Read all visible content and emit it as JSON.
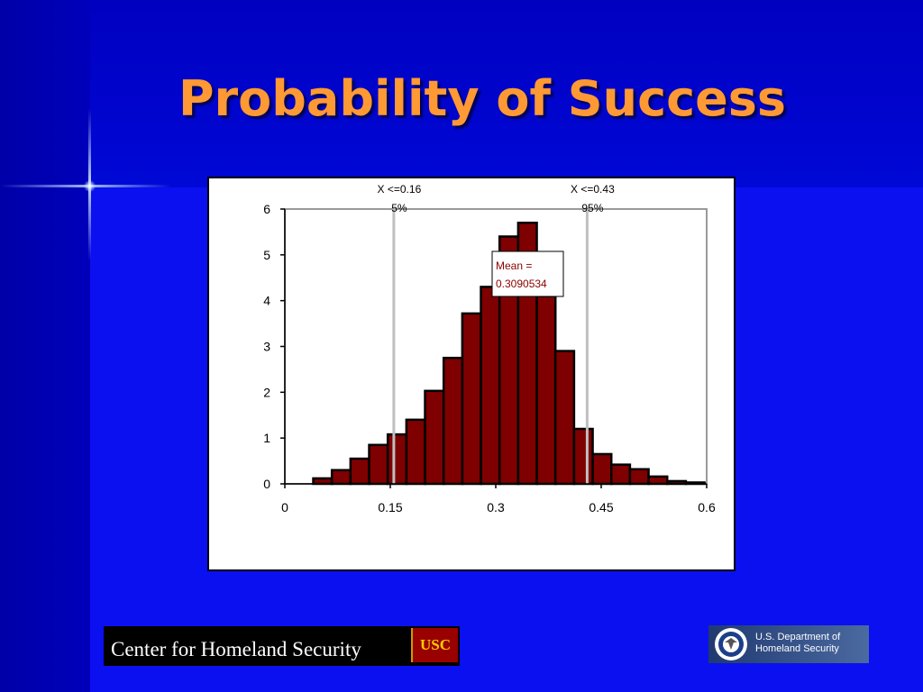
{
  "slide": {
    "title": "Probability of Success"
  },
  "footer": {
    "left_text": "Center for Homeland Security",
    "usc_logo_text": "USC",
    "dhs_line1": "U.S. Department of",
    "dhs_line2": "Homeland Security"
  },
  "colors": {
    "background": "#0000cc",
    "title": "#ff9933",
    "bar_fill": "#7f0000",
    "bar_stroke": "#000000",
    "marker_line": "#c0c0c0",
    "mean_text": "#8b0000"
  },
  "chart_data": {
    "type": "bar",
    "subtype": "histogram",
    "title": "",
    "xlabel": "",
    "ylabel": "",
    "xlim": [
      0,
      0.6
    ],
    "ylim": [
      0,
      6
    ],
    "xticks": [
      "0",
      "0.15",
      "0.3",
      "0.45",
      "0.6"
    ],
    "xtick_values": [
      0,
      0.15,
      0.3,
      0.45,
      0.6
    ],
    "yticks": [
      "0",
      "1",
      "2",
      "3",
      "4",
      "5",
      "6"
    ],
    "bin_width": 0.0265,
    "bin_starts": [
      0.0404,
      0.0669,
      0.0934,
      0.1199,
      0.1464,
      0.1729,
      0.1994,
      0.2259,
      0.2524,
      0.2789,
      0.3054,
      0.3319,
      0.3584,
      0.3849,
      0.4114,
      0.4379,
      0.4644,
      0.4909,
      0.5174,
      0.5439,
      0.5704
    ],
    "values": [
      0.12,
      0.3,
      0.55,
      0.85,
      1.08,
      1.4,
      2.03,
      2.75,
      3.72,
      4.3,
      5.4,
      5.7,
      4.1,
      2.9,
      1.2,
      0.65,
      0.42,
      0.32,
      0.16,
      0.06,
      0.03
    ],
    "markers": [
      {
        "x": 0.155,
        "label_line1": "X <=0.16",
        "label_line2": "5%"
      },
      {
        "x": 0.43,
        "label_line1": "X <=0.43",
        "label_line2": "95%"
      }
    ],
    "mean_label_line1": "Mean =",
    "mean_label_line2": "0.3090534"
  }
}
